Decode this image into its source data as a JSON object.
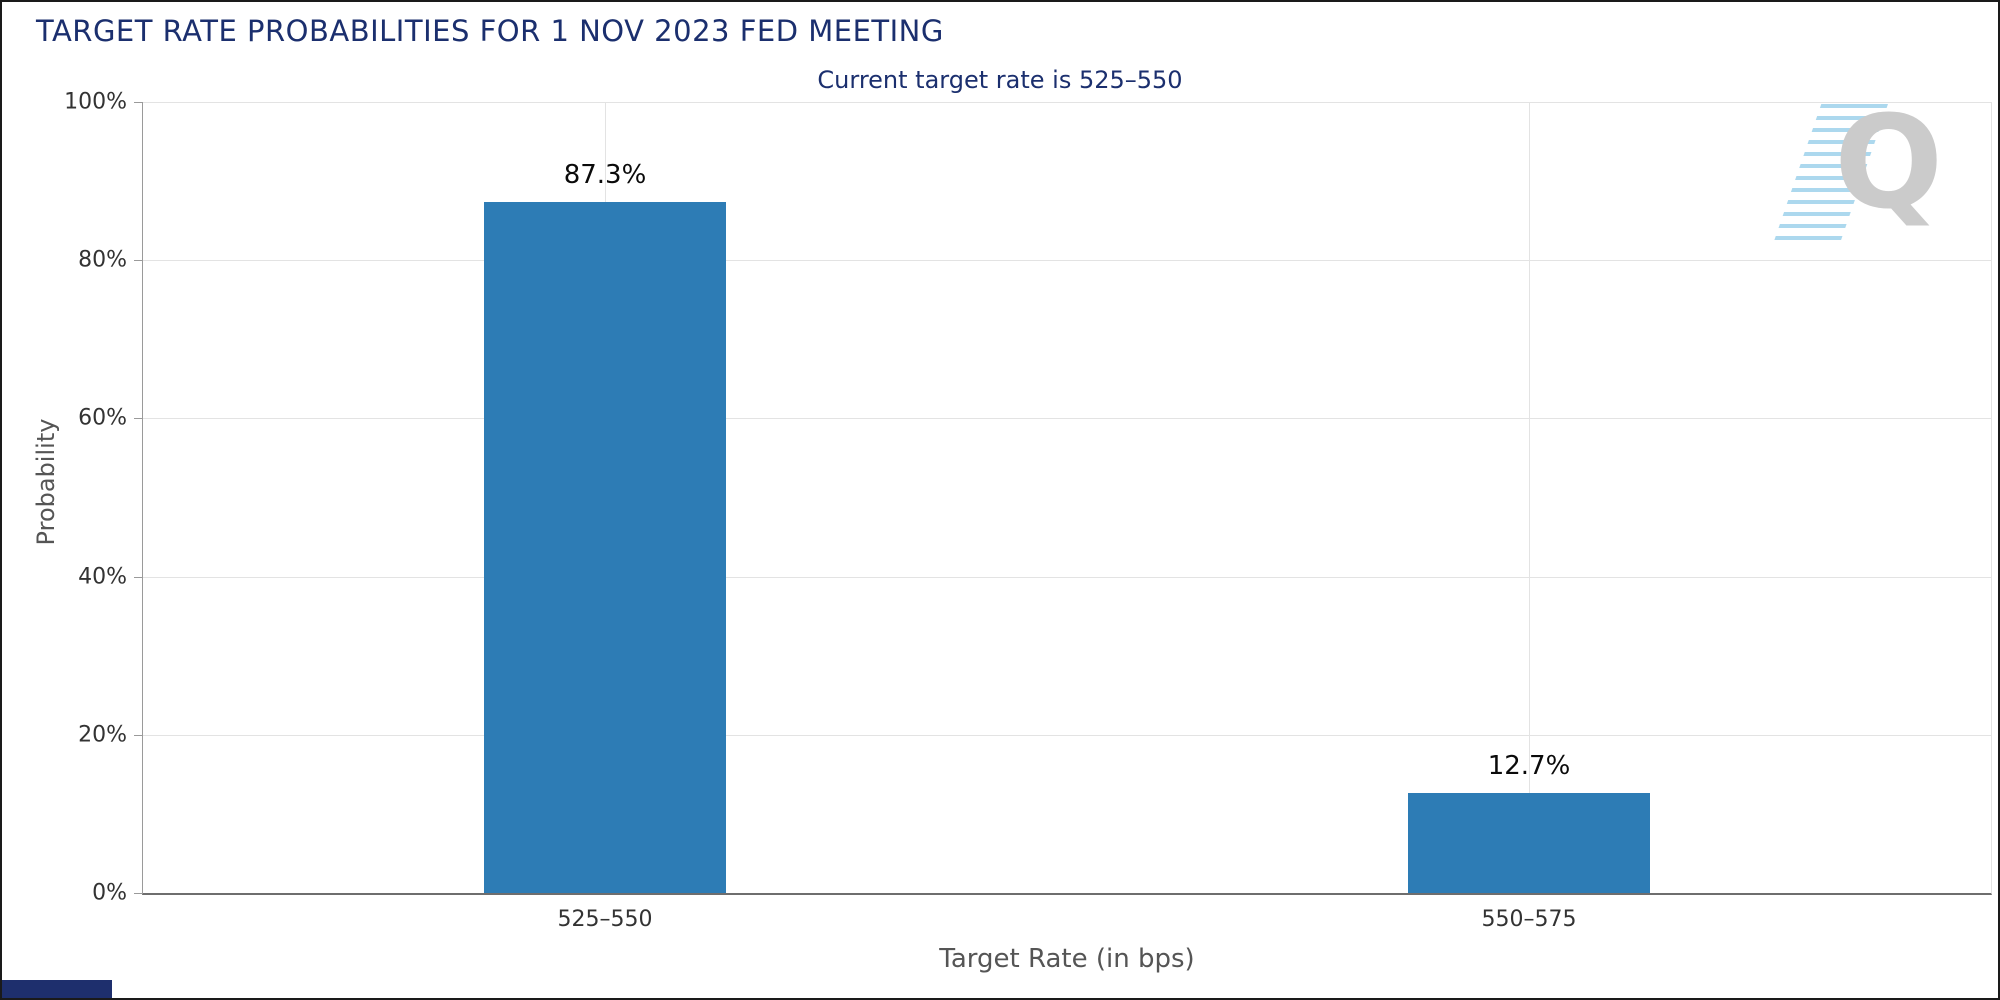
{
  "title": "TARGET RATE PROBABILITIES FOR 1 NOV 2023 FED MEETING",
  "subtitle": "Current target rate is 525–550",
  "watermark_letter": "Q",
  "chart_data": {
    "type": "bar",
    "title": "TARGET RATE PROBABILITIES FOR 1 NOV 2023 FED MEETING",
    "subtitle": "Current target rate is 525–550",
    "categories": [
      "525–550",
      "550–575"
    ],
    "values": [
      87.3,
      12.7
    ],
    "value_labels": [
      "87.3%",
      "12.7%"
    ],
    "xlabel": "Target Rate (in bps)",
    "ylabel": "Probability",
    "ylim": [
      0,
      100
    ],
    "yticks": [
      "0%",
      "20%",
      "40%",
      "60%",
      "80%",
      "100%"
    ],
    "grid": true,
    "legend": "none",
    "bar_color": "#2d7cb5",
    "title_color": "#1b2f6e"
  }
}
